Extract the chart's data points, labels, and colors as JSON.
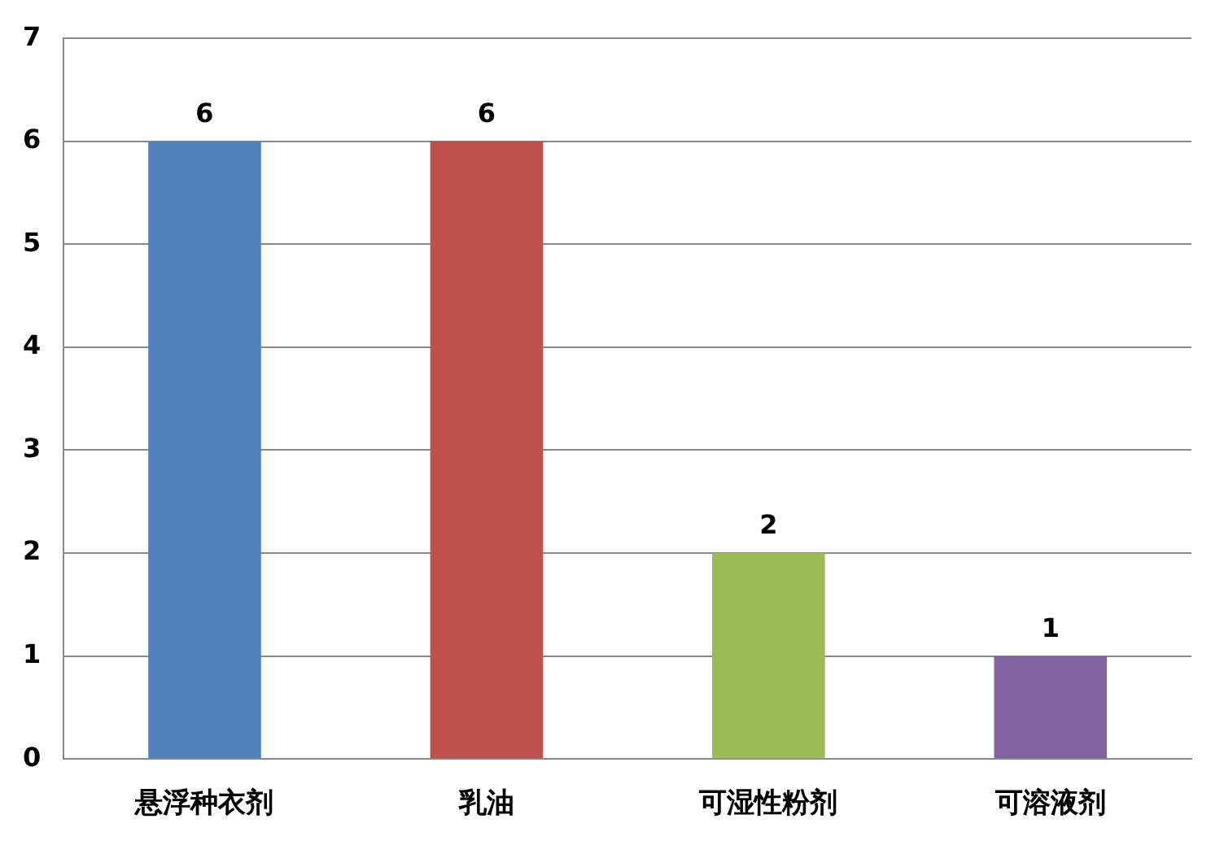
{
  "chart_data": {
    "type": "bar",
    "categories": [
      "悬浮种衣剂",
      "乳油",
      "可湿性粉剂",
      "可溶液剂"
    ],
    "values": [
      6,
      6,
      2,
      1
    ],
    "colors": [
      "#4f81bd",
      "#c0504d",
      "#9bbb59",
      "#8064a2"
    ],
    "ylim": [
      0,
      7
    ],
    "yticks": [
      0,
      1,
      2,
      3,
      4,
      5,
      6,
      7
    ],
    "grid": "y",
    "data_labels": true,
    "legend": false
  }
}
